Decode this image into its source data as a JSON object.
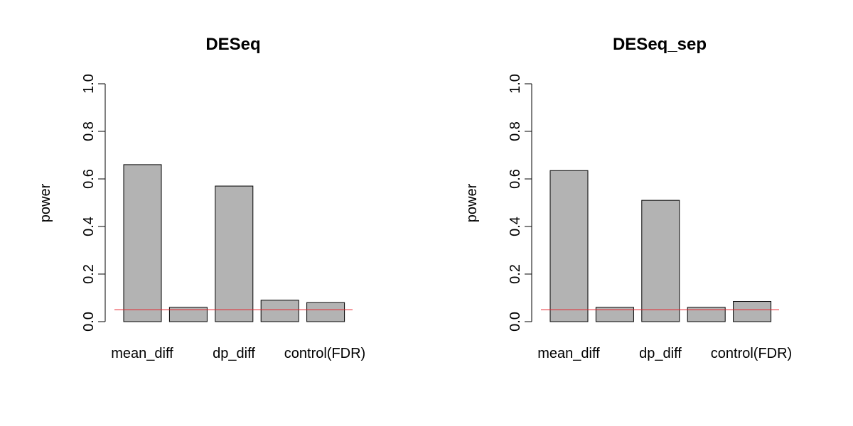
{
  "chart_data": [
    {
      "type": "bar",
      "title": "DESeq",
      "ylabel": "power",
      "ylim": [
        0,
        1
      ],
      "yticks": [
        "0.0",
        "0.2",
        "0.4",
        "0.6",
        "0.8",
        "1.0"
      ],
      "category_labels": [
        "mean_diff",
        "dp_diff",
        "control(FDR)"
      ],
      "values": [
        0.66,
        0.06,
        0.57,
        0.09,
        0.08
      ],
      "bar_color": "#b3b3b3",
      "reference_line": {
        "value": 0.05,
        "color": "#e8232a"
      }
    },
    {
      "type": "bar",
      "title": "DESeq_sep",
      "ylabel": "power",
      "ylim": [
        0,
        1
      ],
      "yticks": [
        "0.0",
        "0.2",
        "0.4",
        "0.6",
        "0.8",
        "1.0"
      ],
      "category_labels": [
        "mean_diff",
        "dp_diff",
        "control(FDR)"
      ],
      "values": [
        0.635,
        0.06,
        0.51,
        0.06,
        0.085
      ],
      "bar_color": "#b3b3b3",
      "reference_line": {
        "value": 0.05,
        "color": "#e8232a"
      }
    }
  ]
}
